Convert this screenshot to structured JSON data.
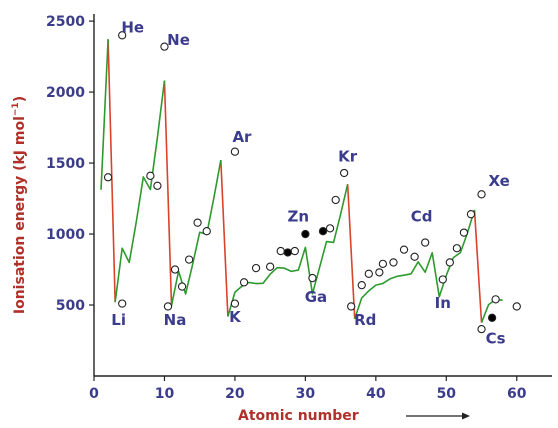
{
  "chart_data": {
    "type": "line",
    "xlabel": "Atomic number",
    "ylabel": "Ionisation energy (kJ mol",
    "ylabel_superscript": "−1",
    "ylabel_suffix": ")",
    "xlim": [
      0,
      65
    ],
    "ylim": [
      0,
      2550
    ],
    "xticks": [
      0,
      10,
      20,
      30,
      40,
      50,
      60
    ],
    "yticks": [
      500,
      1000,
      1500,
      2000,
      2500
    ],
    "grid": false,
    "colors": {
      "period_line": "#2e9a2e",
      "noble_to_alkali_drop": "#d9432b",
      "labels": "#3c3c8c",
      "axis_title": "#b0302a",
      "marker_fill": "#ffffff",
      "marker_stroke": "#222222",
      "filled_marker": "#000000"
    },
    "series": [
      {
        "points": [
          {
            "z": 1,
            "ie": 1312
          },
          {
            "z": 2,
            "ie": 2372
          },
          {
            "z": 3,
            "ie": 520
          },
          {
            "z": 4,
            "ie": 900
          },
          {
            "z": 5,
            "ie": 800
          },
          {
            "z": 6,
            "ie": 1086
          },
          {
            "z": 7,
            "ie": 1402
          },
          {
            "z": 8,
            "ie": 1314
          },
          {
            "z": 9,
            "ie": 1681
          },
          {
            "z": 10,
            "ie": 2081
          },
          {
            "z": 11,
            "ie": 496
          },
          {
            "z": 12,
            "ie": 738
          },
          {
            "z": 13,
            "ie": 578
          },
          {
            "z": 14,
            "ie": 787
          },
          {
            "z": 15,
            "ie": 1012
          },
          {
            "z": 16,
            "ie": 1000
          },
          {
            "z": 17,
            "ie": 1251
          },
          {
            "z": 18,
            "ie": 1521
          },
          {
            "z": 19,
            "ie": 419
          },
          {
            "z": 20,
            "ie": 590
          },
          {
            "z": 21,
            "ie": 633
          },
          {
            "z": 22,
            "ie": 659
          },
          {
            "z": 23,
            "ie": 651
          },
          {
            "z": 24,
            "ie": 653
          },
          {
            "z": 25,
            "ie": 717
          },
          {
            "z": 26,
            "ie": 763
          },
          {
            "z": 27,
            "ie": 760
          },
          {
            "z": 28,
            "ie": 737
          },
          {
            "z": 29,
            "ie": 746
          },
          {
            "z": 30,
            "ie": 906
          },
          {
            "z": 31,
            "ie": 579
          },
          {
            "z": 32,
            "ie": 762
          },
          {
            "z": 33,
            "ie": 947
          },
          {
            "z": 34,
            "ie": 941
          },
          {
            "z": 35,
            "ie": 1140
          },
          {
            "z": 36,
            "ie": 1351
          },
          {
            "z": 37,
            "ie": 403
          },
          {
            "z": 38,
            "ie": 550
          },
          {
            "z": 39,
            "ie": 600
          },
          {
            "z": 40,
            "ie": 640
          },
          {
            "z": 41,
            "ie": 652
          },
          {
            "z": 42,
            "ie": 684
          },
          {
            "z": 43,
            "ie": 702
          },
          {
            "z": 44,
            "ie": 710
          },
          {
            "z": 45,
            "ie": 720
          },
          {
            "z": 46,
            "ie": 804
          },
          {
            "z": 47,
            "ie": 731
          },
          {
            "z": 48,
            "ie": 868
          },
          {
            "z": 49,
            "ie": 558
          },
          {
            "z": 50,
            "ie": 709
          },
          {
            "z": 51,
            "ie": 834
          },
          {
            "z": 52,
            "ie": 869
          },
          {
            "z": 53,
            "ie": 1008
          },
          {
            "z": 54,
            "ie": 1170
          },
          {
            "z": 55,
            "ie": 376
          },
          {
            "z": 56,
            "ie": 503
          },
          {
            "z": 57,
            "ie": 538
          },
          {
            "z": 58,
            "ie": 534
          }
        ],
        "drops": [
          [
            2,
            3
          ],
          [
            10,
            11
          ],
          [
            18,
            19
          ],
          [
            36,
            37
          ],
          [
            54,
            55
          ]
        ],
        "markers": [
          {
            "x": 2.0,
            "y": 1400,
            "filled": false
          },
          {
            "x": 4.0,
            "y": 2400,
            "filled": false
          },
          {
            "x": 4.0,
            "y": 510,
            "filled": false
          },
          {
            "x": 8.0,
            "y": 1410,
            "filled": false
          },
          {
            "x": 9.0,
            "y": 1340,
            "filled": false
          },
          {
            "x": 10.0,
            "y": 2320,
            "filled": false
          },
          {
            "x": 10.5,
            "y": 490,
            "filled": false
          },
          {
            "x": 11.5,
            "y": 750,
            "filled": false
          },
          {
            "x": 12.5,
            "y": 630,
            "filled": false
          },
          {
            "x": 13.5,
            "y": 820,
            "filled": false
          },
          {
            "x": 14.7,
            "y": 1080,
            "filled": false
          },
          {
            "x": 16.0,
            "y": 1020,
            "filled": false
          },
          {
            "x": 20.0,
            "y": 1580,
            "filled": false
          },
          {
            "x": 20.0,
            "y": 510,
            "filled": false
          },
          {
            "x": 21.3,
            "y": 660,
            "filled": false
          },
          {
            "x": 23.0,
            "y": 760,
            "filled": false
          },
          {
            "x": 25.0,
            "y": 770,
            "filled": false
          },
          {
            "x": 26.5,
            "y": 880,
            "filled": false
          },
          {
            "x": 27.5,
            "y": 870,
            "filled": true
          },
          {
            "x": 28.5,
            "y": 880,
            "filled": false
          },
          {
            "x": 30.0,
            "y": 1000,
            "filled": true
          },
          {
            "x": 31.0,
            "y": 690,
            "filled": false
          },
          {
            "x": 32.5,
            "y": 1020,
            "filled": true
          },
          {
            "x": 33.5,
            "y": 1040,
            "filled": false
          },
          {
            "x": 34.3,
            "y": 1240,
            "filled": false
          },
          {
            "x": 35.5,
            "y": 1430,
            "filled": false
          },
          {
            "x": 36.5,
            "y": 490,
            "filled": false
          },
          {
            "x": 38.0,
            "y": 640,
            "filled": false
          },
          {
            "x": 39.0,
            "y": 720,
            "filled": false
          },
          {
            "x": 40.5,
            "y": 730,
            "filled": false
          },
          {
            "x": 41.0,
            "y": 790,
            "filled": false
          },
          {
            "x": 42.5,
            "y": 800,
            "filled": false
          },
          {
            "x": 44.0,
            "y": 890,
            "filled": false
          },
          {
            "x": 45.5,
            "y": 840,
            "filled": false
          },
          {
            "x": 47.0,
            "y": 940,
            "filled": false
          },
          {
            "x": 49.5,
            "y": 680,
            "filled": false
          },
          {
            "x": 50.5,
            "y": 800,
            "filled": false
          },
          {
            "x": 51.5,
            "y": 900,
            "filled": false
          },
          {
            "x": 52.5,
            "y": 1010,
            "filled": false
          },
          {
            "x": 53.5,
            "y": 1140,
            "filled": false
          },
          {
            "x": 55.0,
            "y": 1280,
            "filled": false
          },
          {
            "x": 55.0,
            "y": 330,
            "filled": false
          },
          {
            "x": 56.5,
            "y": 410,
            "filled": true
          },
          {
            "x": 57.0,
            "y": 540,
            "filled": false
          },
          {
            "x": 60.0,
            "y": 490,
            "filled": false
          }
        ]
      }
    ],
    "annotations": [
      {
        "text": "He",
        "x": 5.5,
        "y": 2420
      },
      {
        "text": "Li",
        "x": 3.5,
        "y": 360
      },
      {
        "text": "Ne",
        "x": 12.0,
        "y": 2330
      },
      {
        "text": "Na",
        "x": 11.5,
        "y": 360
      },
      {
        "text": "Ar",
        "x": 21.0,
        "y": 1650
      },
      {
        "text": "K",
        "x": 20.0,
        "y": 380
      },
      {
        "text": "Zn",
        "x": 29.0,
        "y": 1090
      },
      {
        "text": "Ga",
        "x": 31.5,
        "y": 520
      },
      {
        "text": "Kr",
        "x": 36.0,
        "y": 1510
      },
      {
        "text": "Rd",
        "x": 38.5,
        "y": 360
      },
      {
        "text": "Cd",
        "x": 46.5,
        "y": 1090
      },
      {
        "text": "In",
        "x": 49.5,
        "y": 480
      },
      {
        "text": "Xe",
        "x": 57.5,
        "y": 1340
      },
      {
        "text": "Cs",
        "x": 57.0,
        "y": 230
      }
    ]
  }
}
